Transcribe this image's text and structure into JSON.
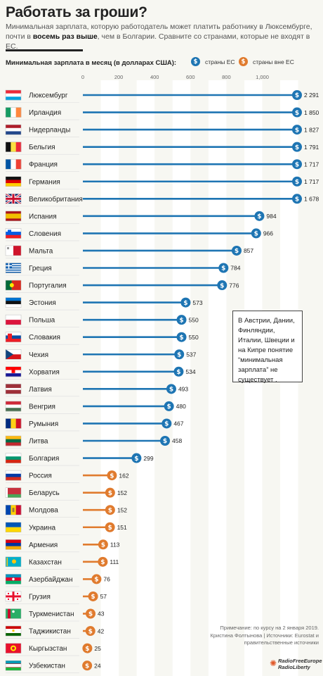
{
  "title": "Работать за гроши?",
  "subtitle": {
    "line1": "Минимальная зарплата, которую работодатель может платить работнику в Люксембурге,",
    "line2_a": "почти в ",
    "line2_bold": "восемь раз выше",
    "line2_b": ", чем в Болгарии. Сравните со странами, которые не входят в ЕС."
  },
  "legend": {
    "symbol": "$",
    "eu_label": "страны ЕС",
    "non_eu_label": "страны вне ЕС"
  },
  "colors": {
    "eu": "#1e75b3",
    "non_eu": "#e07b2e",
    "band": "#ffffff",
    "background": "#f7f7f2"
  },
  "note": "В Австрии, Дании, Финляндии, Италии, Швеции и на Кипре понятие “минимальная зарплата” не существует .",
  "footnote": {
    "date": "Примечание: по курсу на 2 января 2019.",
    "source": "Кристина Фолтынова | Источники: Eurostat и правительственные источники"
  },
  "logo": {
    "line1": "RadioFreeEurope",
    "line2": "RadioLiberty"
  },
  "chart_data": {
    "type": "bar",
    "orientation": "horizontal",
    "title": "Минимальная зарплата в месяц (в долларах США):",
    "xlim": [
      0,
      1200
    ],
    "xticks": [
      0,
      200,
      400,
      600,
      800,
      1000
    ],
    "xtick_labels": [
      "0",
      "200",
      "400",
      "600",
      "800",
      "1,000"
    ],
    "grid": "alternating vertical bands",
    "legend_position": "top-right",
    "series": [
      {
        "name": "страны ЕС",
        "group": "eu"
      },
      {
        "name": "страны вне ЕС",
        "group": "non_eu"
      }
    ],
    "rows": [
      {
        "country": "Люксембург",
        "value": 2291,
        "label": "2 291",
        "group": "eu",
        "flag": "luxembourg"
      },
      {
        "country": "Ирландия",
        "value": 1850,
        "label": "1 850",
        "group": "eu",
        "flag": "ireland"
      },
      {
        "country": "Нидерланды",
        "value": 1827,
        "label": "1 827",
        "group": "eu",
        "flag": "netherlands"
      },
      {
        "country": "Бельгия",
        "value": 1791,
        "label": "1 791",
        "group": "eu",
        "flag": "belgium"
      },
      {
        "country": "Франция",
        "value": 1717,
        "label": "1 717",
        "group": "eu",
        "flag": "france"
      },
      {
        "country": "Германия",
        "value": 1717,
        "label": "1 717",
        "group": "eu",
        "flag": "germany"
      },
      {
        "country": "Великобритания",
        "value": 1678,
        "label": "1 678",
        "group": "eu",
        "flag": "uk"
      },
      {
        "country": "Испания",
        "value": 984,
        "label": "984",
        "group": "eu",
        "flag": "spain"
      },
      {
        "country": "Словения",
        "value": 966,
        "label": "966",
        "group": "eu",
        "flag": "slovenia"
      },
      {
        "country": "Мальта",
        "value": 857,
        "label": "857",
        "group": "eu",
        "flag": "malta"
      },
      {
        "country": "Греция",
        "value": 784,
        "label": "784",
        "group": "eu",
        "flag": "greece"
      },
      {
        "country": "Португалия",
        "value": 776,
        "label": "776",
        "group": "eu",
        "flag": "portugal"
      },
      {
        "country": "Эстония",
        "value": 573,
        "label": "573",
        "group": "eu",
        "flag": "estonia"
      },
      {
        "country": "Польша",
        "value": 550,
        "label": "550",
        "group": "eu",
        "flag": "poland"
      },
      {
        "country": "Словакия",
        "value": 550,
        "label": "550",
        "group": "eu",
        "flag": "slovakia"
      },
      {
        "country": "Чехия",
        "value": 537,
        "label": "537",
        "group": "eu",
        "flag": "czechia"
      },
      {
        "country": "Хорватия",
        "value": 534,
        "label": "534",
        "group": "eu",
        "flag": "croatia"
      },
      {
        "country": "Латвия",
        "value": 493,
        "label": "493",
        "group": "eu",
        "flag": "latvia"
      },
      {
        "country": "Венгрия",
        "value": 480,
        "label": "480",
        "group": "eu",
        "flag": "hungary"
      },
      {
        "country": "Румыния",
        "value": 467,
        "label": "467",
        "group": "eu",
        "flag": "romania"
      },
      {
        "country": "Литва",
        "value": 458,
        "label": "458",
        "group": "eu",
        "flag": "lithuania"
      },
      {
        "country": "Болгария",
        "value": 299,
        "label": "299",
        "group": "eu",
        "flag": "bulgaria"
      },
      {
        "country": "Россия",
        "value": 162,
        "label": "162",
        "group": "non_eu",
        "flag": "russia"
      },
      {
        "country": "Беларусь",
        "value": 152,
        "label": "152",
        "group": "non_eu",
        "flag": "belarus"
      },
      {
        "country": "Молдова",
        "value": 152,
        "label": "152",
        "group": "non_eu",
        "flag": "moldova"
      },
      {
        "country": "Украина",
        "value": 151,
        "label": "151",
        "group": "non_eu",
        "flag": "ukraine"
      },
      {
        "country": "Армения",
        "value": 113,
        "label": "113",
        "group": "non_eu",
        "flag": "armenia"
      },
      {
        "country": "Казахстан",
        "value": 111,
        "label": "111",
        "group": "non_eu",
        "flag": "kazakhstan"
      },
      {
        "country": "Азербайджан",
        "value": 76,
        "label": "76",
        "group": "non_eu",
        "flag": "azerbaijan"
      },
      {
        "country": "Грузия",
        "value": 57,
        "label": "57",
        "group": "non_eu",
        "flag": "georgia"
      },
      {
        "country": "Туркменистан",
        "value": 43,
        "label": "43",
        "group": "non_eu",
        "flag": "turkmenistan"
      },
      {
        "country": "Таджикистан",
        "value": 42,
        "label": "42",
        "group": "non_eu",
        "flag": "tajikistan"
      },
      {
        "country": "Кыргызстан",
        "value": 25,
        "label": "25",
        "group": "non_eu",
        "flag": "kyrgyzstan"
      },
      {
        "country": "Узбекистан",
        "value": 24,
        "label": "24",
        "group": "non_eu",
        "flag": "uzbekistan"
      }
    ]
  }
}
